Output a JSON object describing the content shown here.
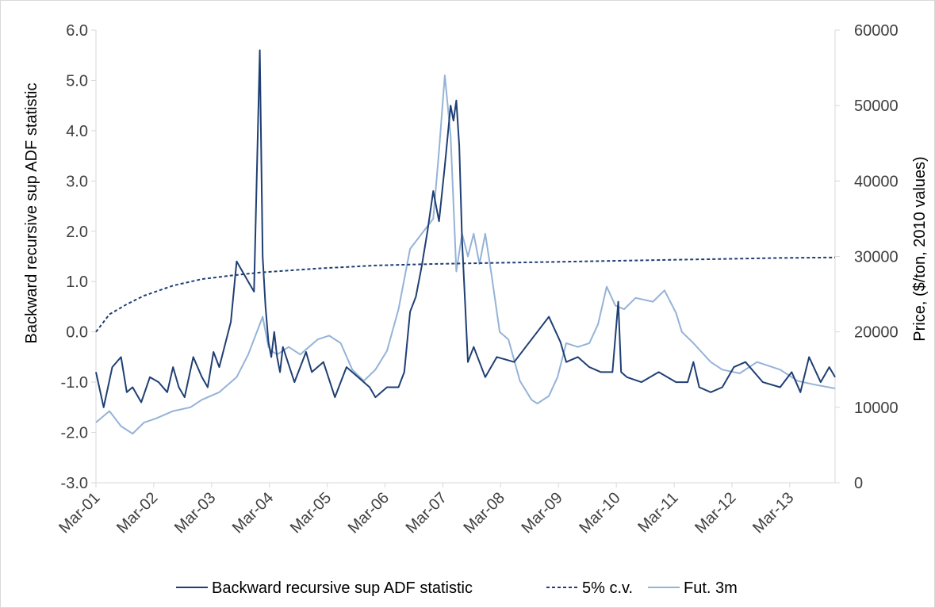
{
  "chart_data": {
    "type": "line",
    "title": "",
    "ylabel_left": "Backward recursive sup ADF statistic",
    "ylabel_right": "Price, ($/ton, 2010 values)",
    "ylim_left": [
      -3.0,
      6.0
    ],
    "ylim_right": [
      0,
      60000
    ],
    "yticks_left": [
      "6.0",
      "5.0",
      "4.0",
      "3.0",
      "2.0",
      "1.0",
      "0.0",
      "-1.0",
      "-2.0",
      "-3.0"
    ],
    "yticks_left_values": [
      6,
      5,
      4,
      3,
      2,
      1,
      0,
      -1,
      -2,
      -3
    ],
    "yticks_right": [
      "60000",
      "50000",
      "40000",
      "30000",
      "20000",
      "10000",
      "0"
    ],
    "yticks_right_values": [
      60000,
      50000,
      40000,
      30000,
      20000,
      10000,
      0
    ],
    "xlim": [
      2001.167,
      2013.95
    ],
    "xtick_labels": [
      "Mar-01",
      "Mar-02",
      "Mar-03",
      "Mar-04",
      "Mar-05",
      "Mar-06",
      "Mar-07",
      "Mar-08",
      "Mar-09",
      "Mar-10",
      "Mar-11",
      "Mar-12",
      "Mar-13"
    ],
    "xtick_values": [
      2001.167,
      2002.167,
      2003.167,
      2004.167,
      2005.167,
      2006.167,
      2007.167,
      2008.167,
      2009.167,
      2010.167,
      2011.167,
      2012.167,
      2013.167
    ],
    "grid": false,
    "legend_position": "bottom",
    "series": [
      {
        "name": "Backward recursive sup ADF statistic",
        "axis": "left",
        "color": "#1f3f73",
        "style": "solid",
        "x": [
          2001.167,
          2001.3,
          2001.45,
          2001.6,
          2001.7,
          2001.8,
          2001.95,
          2002.1,
          2002.25,
          2002.4,
          2002.5,
          2002.6,
          2002.7,
          2002.85,
          2003.0,
          2003.1,
          2003.2,
          2003.3,
          2003.5,
          2003.6,
          2003.8,
          2003.9,
          2004.0,
          2004.05,
          2004.1,
          2004.15,
          2004.2,
          2004.25,
          2004.3,
          2004.35,
          2004.4,
          2004.6,
          2004.8,
          2004.9,
          2005.1,
          2005.3,
          2005.5,
          2005.7,
          2005.9,
          2006.0,
          2006.2,
          2006.4,
          2006.5,
          2006.6,
          2006.7,
          2006.8,
          2006.9,
          2007.0,
          2007.1,
          2007.2,
          2007.3,
          2007.35,
          2007.4,
          2007.45,
          2007.5,
          2007.55,
          2007.6,
          2007.7,
          2007.9,
          2008.1,
          2008.4,
          2008.6,
          2008.8,
          2009.0,
          2009.2,
          2009.3,
          2009.5,
          2009.7,
          2009.9,
          2010.1,
          2010.2,
          2010.25,
          2010.35,
          2010.6,
          2010.9,
          2011.2,
          2011.4,
          2011.5,
          2011.6,
          2011.8,
          2012.0,
          2012.2,
          2012.4,
          2012.7,
          2013.0,
          2013.2,
          2013.35,
          2013.5,
          2013.7,
          2013.85,
          2013.95
        ],
        "y": [
          -0.8,
          -1.5,
          -0.7,
          -0.5,
          -1.2,
          -1.1,
          -1.4,
          -0.9,
          -1.0,
          -1.2,
          -0.7,
          -1.1,
          -1.3,
          -0.5,
          -0.9,
          -1.1,
          -0.4,
          -0.7,
          0.2,
          1.4,
          1.0,
          0.8,
          5.6,
          1.5,
          0.5,
          -0.2,
          -0.5,
          0.0,
          -0.5,
          -0.8,
          -0.3,
          -1.0,
          -0.4,
          -0.8,
          -0.6,
          -1.3,
          -0.7,
          -0.9,
          -1.1,
          -1.3,
          -1.1,
          -1.1,
          -0.8,
          0.4,
          0.7,
          1.3,
          2.0,
          2.8,
          2.2,
          3.3,
          4.5,
          4.2,
          4.6,
          3.7,
          1.8,
          0.6,
          -0.6,
          -0.3,
          -0.9,
          -0.5,
          -0.6,
          -0.3,
          0.0,
          0.3,
          -0.2,
          -0.6,
          -0.5,
          -0.7,
          -0.8,
          -0.8,
          0.6,
          -0.8,
          -0.9,
          -1.0,
          -0.8,
          -1.0,
          -1.0,
          -0.6,
          -1.1,
          -1.2,
          -1.1,
          -0.7,
          -0.6,
          -1.0,
          -1.1,
          -0.8,
          -1.2,
          -0.5,
          -1.0,
          -0.7,
          -0.9
        ]
      },
      {
        "name": "5% c.v.",
        "axis": "left",
        "color": "#1f3f73",
        "style": "dashed",
        "x": [
          2001.167,
          2001.4,
          2001.7,
          2002.0,
          2002.5,
          2003.0,
          2003.5,
          2004.0,
          2005.0,
          2006.0,
          2007.0,
          2008.0,
          2009.0,
          2010.0,
          2011.0,
          2012.0,
          2013.0,
          2013.95
        ],
        "y": [
          0.0,
          0.35,
          0.55,
          0.72,
          0.92,
          1.05,
          1.12,
          1.18,
          1.26,
          1.32,
          1.35,
          1.37,
          1.39,
          1.41,
          1.43,
          1.45,
          1.47,
          1.48
        ]
      },
      {
        "name": "Fut. 3m",
        "axis": "right",
        "color": "#95b3d7",
        "style": "solid",
        "x": [
          2001.167,
          2001.4,
          2001.6,
          2001.8,
          2002.0,
          2002.2,
          2002.5,
          2002.8,
          2003.0,
          2003.3,
          2003.6,
          2003.8,
          2003.95,
          2004.05,
          2004.15,
          2004.2,
          2004.3,
          2004.5,
          2004.7,
          2005.0,
          2005.2,
          2005.4,
          2005.6,
          2005.8,
          2006.0,
          2006.2,
          2006.4,
          2006.6,
          2006.8,
          2007.0,
          2007.1,
          2007.2,
          2007.3,
          2007.4,
          2007.5,
          2007.6,
          2007.7,
          2007.8,
          2007.9,
          2008.0,
          2008.15,
          2008.3,
          2008.5,
          2008.7,
          2008.8,
          2009.0,
          2009.15,
          2009.3,
          2009.5,
          2009.7,
          2009.85,
          2010.0,
          2010.15,
          2010.3,
          2010.5,
          2010.8,
          2011.0,
          2011.2,
          2011.3,
          2011.5,
          2011.8,
          2012.0,
          2012.3,
          2012.6,
          2013.0,
          2013.3,
          2013.6,
          2013.95
        ],
        "y": [
          8000,
          9500,
          7500,
          6500,
          8000,
          8500,
          9500,
          10000,
          11000,
          12000,
          14000,
          17000,
          20000,
          22000,
          18000,
          17500,
          17000,
          18000,
          17000,
          19000,
          19500,
          18500,
          15000,
          13500,
          15000,
          17500,
          23000,
          31000,
          33000,
          35000,
          44000,
          54000,
          46000,
          28000,
          33000,
          30000,
          33000,
          29000,
          33000,
          28000,
          20000,
          19000,
          13500,
          11000,
          10500,
          11500,
          14000,
          18500,
          18000,
          18500,
          21000,
          26000,
          23500,
          23000,
          24500,
          24000,
          25500,
          22500,
          20000,
          18500,
          16000,
          15000,
          14500,
          16000,
          15000,
          13500,
          13000,
          12500
        ]
      }
    ]
  }
}
